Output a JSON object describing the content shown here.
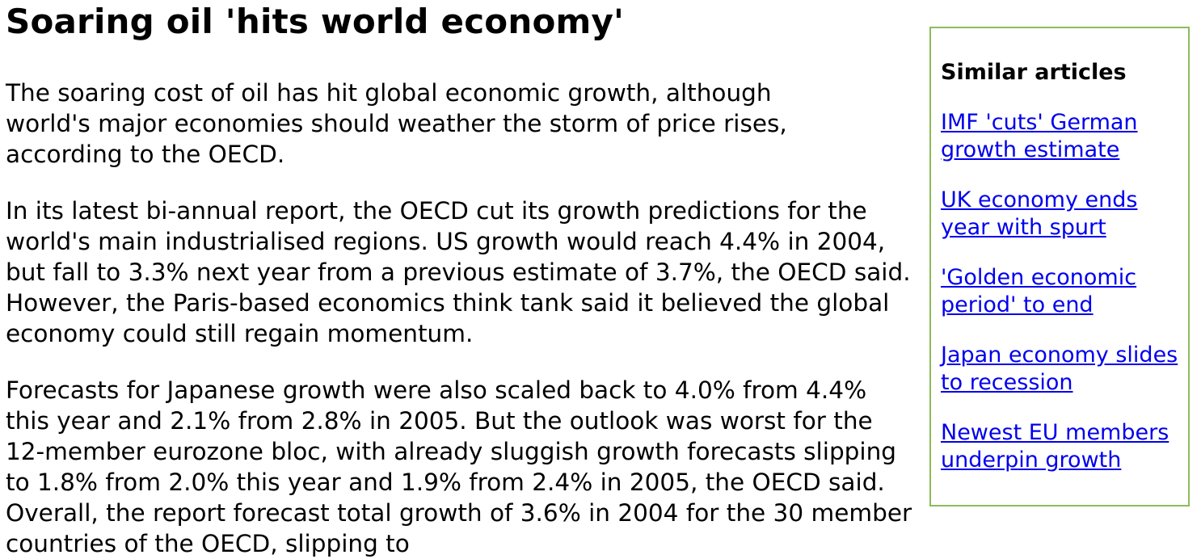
{
  "article": {
    "title": "Soaring oil 'hits world economy'",
    "paragraphs": [
      "The soaring cost of oil has hit global economic growth, although world's major economies should weather the storm of price rises, according to the OECD.",
      "In its latest bi-annual report, the OECD cut its growth predictions for the world's main industrialised regions. US growth would reach 4.4% in 2004, but fall to 3.3% next year from a previous estimate of 3.7%, the OECD said. However, the Paris-based economics think tank said it believed the global economy could still regain momentum.",
      "Forecasts for Japanese growth were also scaled back to 4.0% from 4.4% this year and 2.1% from 2.8% in 2005. But the outlook was worst for the 12-member eurozone bloc, with already sluggish growth forecasts slipping to 1.8% from 2.0% this year and 1.9% from 2.4% in 2005, the OECD said. Overall, the report forecast total growth of 3.6% in 2004 for the 30 member countries of the OECD, slipping to"
    ]
  },
  "sidebar": {
    "heading": "Similar articles",
    "links": [
      "IMF 'cuts' German growth estimate",
      "UK economy ends year with spurt",
      "'Golden economic period' to end",
      "Japan economy slides to recession",
      "Newest EU members underpin growth"
    ]
  },
  "colors": {
    "link": "#0000ee",
    "sidebar_border": "#8dbb5a",
    "text": "#000000",
    "background": "#ffffff"
  }
}
